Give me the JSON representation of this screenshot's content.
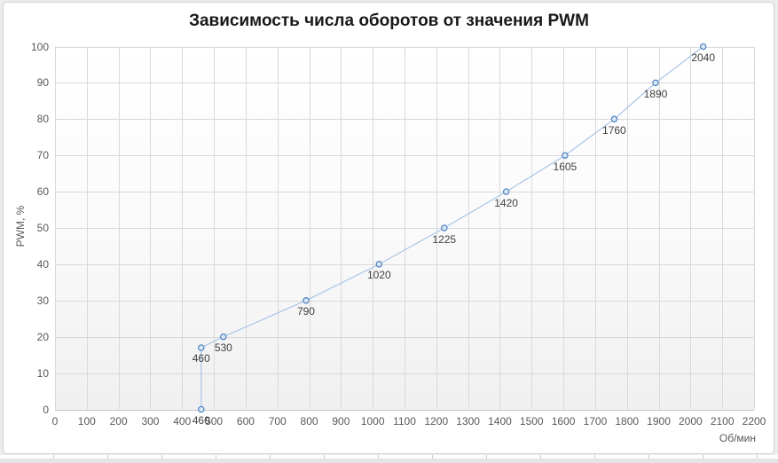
{
  "chart_data": {
    "type": "scatter",
    "title": "Зависимость числа оборотов от значения PWM",
    "xlabel": "Об/мин",
    "ylabel": "PWM, %",
    "xlim": [
      0,
      2200
    ],
    "ylim": [
      0,
      100
    ],
    "x_ticks": [
      0,
      100,
      200,
      300,
      400,
      500,
      600,
      700,
      800,
      900,
      1000,
      1100,
      1200,
      1300,
      1400,
      1500,
      1600,
      1700,
      1800,
      1900,
      2000,
      2100,
      2200
    ],
    "y_ticks": [
      0,
      10,
      20,
      30,
      40,
      50,
      60,
      70,
      80,
      90,
      100
    ],
    "grid": true,
    "legend": "none",
    "points": [
      {
        "x": 460,
        "y": 0,
        "label": "460"
      },
      {
        "x": 460,
        "y": 17,
        "label": "460"
      },
      {
        "x": 530,
        "y": 20,
        "label": "530"
      },
      {
        "x": 790,
        "y": 30,
        "label": "790"
      },
      {
        "x": 1020,
        "y": 40,
        "label": "1020"
      },
      {
        "x": 1225,
        "y": 50,
        "label": "1225"
      },
      {
        "x": 1420,
        "y": 60,
        "label": "1420"
      },
      {
        "x": 1605,
        "y": 70,
        "label": "1605"
      },
      {
        "x": 1760,
        "y": 80,
        "label": "1760"
      },
      {
        "x": 1890,
        "y": 90,
        "label": "1890"
      },
      {
        "x": 2040,
        "y": 100,
        "label": "2040"
      }
    ]
  },
  "colors": {
    "page_background": "#ECECEC",
    "chart_background": "#FFFFFF",
    "chart_border": "#D2D2D2",
    "grid": "#D9D9D9",
    "axis_line": "#BFBFBF",
    "series_line": "#A9C5E6",
    "marker_stroke": "#5586C2",
    "marker_fill": "#DCE8F5",
    "title_text": "#181818",
    "tick_text": "#595959",
    "data_label_text": "#404040",
    "plot_gradient_top": "#FFFFFF",
    "plot_gradient_bottom": "#F0F0F0"
  }
}
